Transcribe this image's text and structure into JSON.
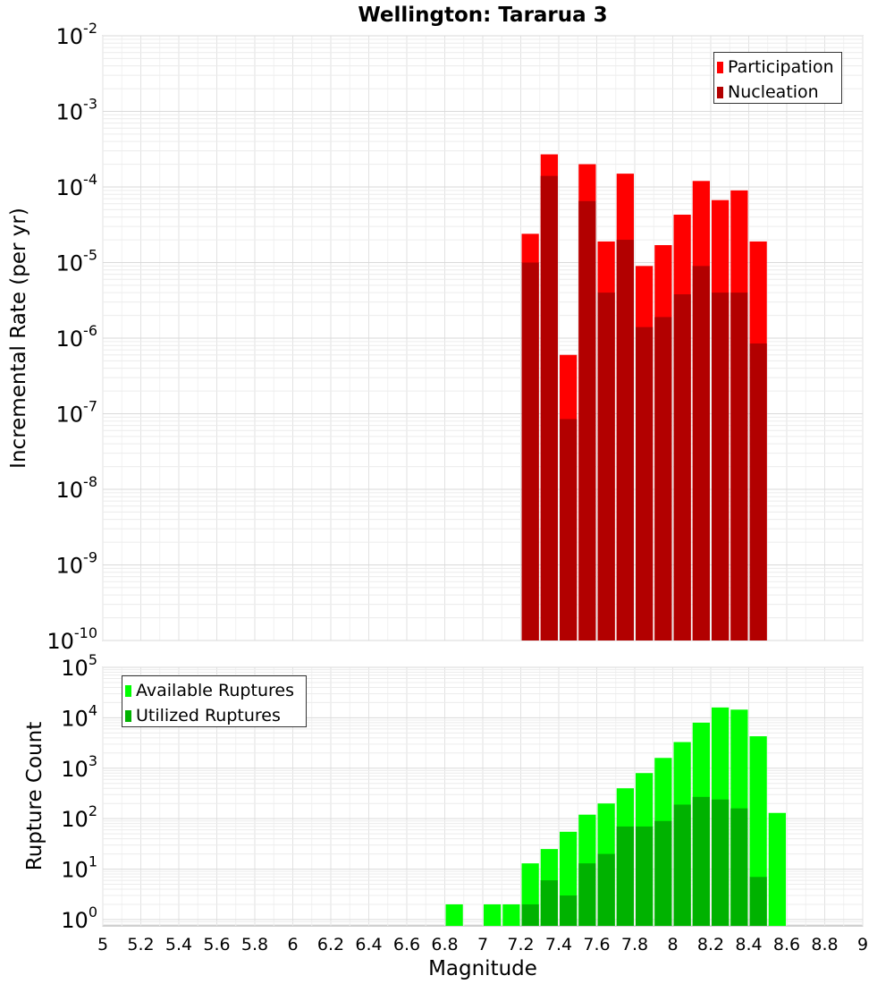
{
  "chart_data": [
    {
      "type": "bar",
      "title": "Wellington: Tararua 3",
      "ylabel": "Incremental Rate (per yr)",
      "xlabel": "",
      "xlim": [
        5,
        9
      ],
      "ylim": [
        1e-10,
        0.01
      ],
      "y_scale": "log",
      "y_ticks": [
        {
          "base": "10",
          "exp": "-10"
        },
        {
          "base": "10",
          "exp": "-9"
        },
        {
          "base": "10",
          "exp": "-8"
        },
        {
          "base": "10",
          "exp": "-7"
        },
        {
          "base": "10",
          "exp": "-6"
        },
        {
          "base": "10",
          "exp": "-5"
        },
        {
          "base": "10",
          "exp": "-4"
        },
        {
          "base": "10",
          "exp": "-3"
        },
        {
          "base": "10",
          "exp": "-2"
        }
      ],
      "grid": true,
      "bar_width": 0.1,
      "legend": {
        "placement": "top-right"
      },
      "x": [
        7.25,
        7.35,
        7.45,
        7.55,
        7.65,
        7.75,
        7.85,
        7.95,
        8.05,
        8.15,
        8.25,
        8.35,
        8.45
      ],
      "series": [
        {
          "name": "Participation",
          "color": "#ff0000",
          "values": [
            2.4e-05,
            0.00027,
            6e-07,
            0.0002,
            1.9e-05,
            0.00015,
            9e-06,
            1.7e-05,
            4.3e-05,
            0.00012,
            6.7e-05,
            9e-05,
            1.9e-05
          ]
        },
        {
          "name": "Nucleation",
          "color": "#b20000",
          "values": [
            1e-05,
            0.00014,
            8.5e-08,
            6.5e-05,
            4e-06,
            2e-05,
            1.4e-06,
            1.9e-06,
            3.8e-06,
            9e-06,
            4e-06,
            4e-06,
            8.5e-07
          ]
        }
      ]
    },
    {
      "type": "bar",
      "title": "",
      "ylabel": "Rupture Count",
      "xlabel": "Magnitude",
      "xlim": [
        5,
        9
      ],
      "ylim": [
        0.75,
        100000.0
      ],
      "y_scale": "log",
      "y_ticks": [
        {
          "base": "10",
          "exp": "0"
        },
        {
          "base": "10",
          "exp": "1"
        },
        {
          "base": "10",
          "exp": "2"
        },
        {
          "base": "10",
          "exp": "3"
        },
        {
          "base": "10",
          "exp": "4"
        },
        {
          "base": "10",
          "exp": "5"
        }
      ],
      "x_tick_labels": [
        "5",
        "5.2",
        "5.4",
        "5.6",
        "5.8",
        "6",
        "6.2",
        "6.4",
        "6.6",
        "6.8",
        "7",
        "7.2",
        "7.4",
        "7.6",
        "7.8",
        "8",
        "8.2",
        "8.4",
        "8.6",
        "8.8",
        "9"
      ],
      "grid": true,
      "bar_width": 0.1,
      "legend": {
        "placement": "top-left"
      },
      "x": [
        6.85,
        7.05,
        7.15,
        7.25,
        7.35,
        7.45,
        7.55,
        7.65,
        7.75,
        7.85,
        7.95,
        8.05,
        8.15,
        8.25,
        8.35,
        8.45,
        8.55
      ],
      "series": [
        {
          "name": "Available Ruptures",
          "color": "#00ff00",
          "values": [
            2,
            2,
            2,
            13,
            25,
            55,
            120,
            200,
            400,
            800,
            1600,
            3300,
            8000,
            16000,
            14500,
            4300,
            130
          ]
        },
        {
          "name": "Utilized Ruptures",
          "color": "#00b200",
          "values": [
            null,
            null,
            null,
            2,
            6,
            3,
            13,
            20,
            70,
            70,
            90,
            190,
            270,
            240,
            160,
            7,
            null
          ]
        }
      ]
    }
  ]
}
